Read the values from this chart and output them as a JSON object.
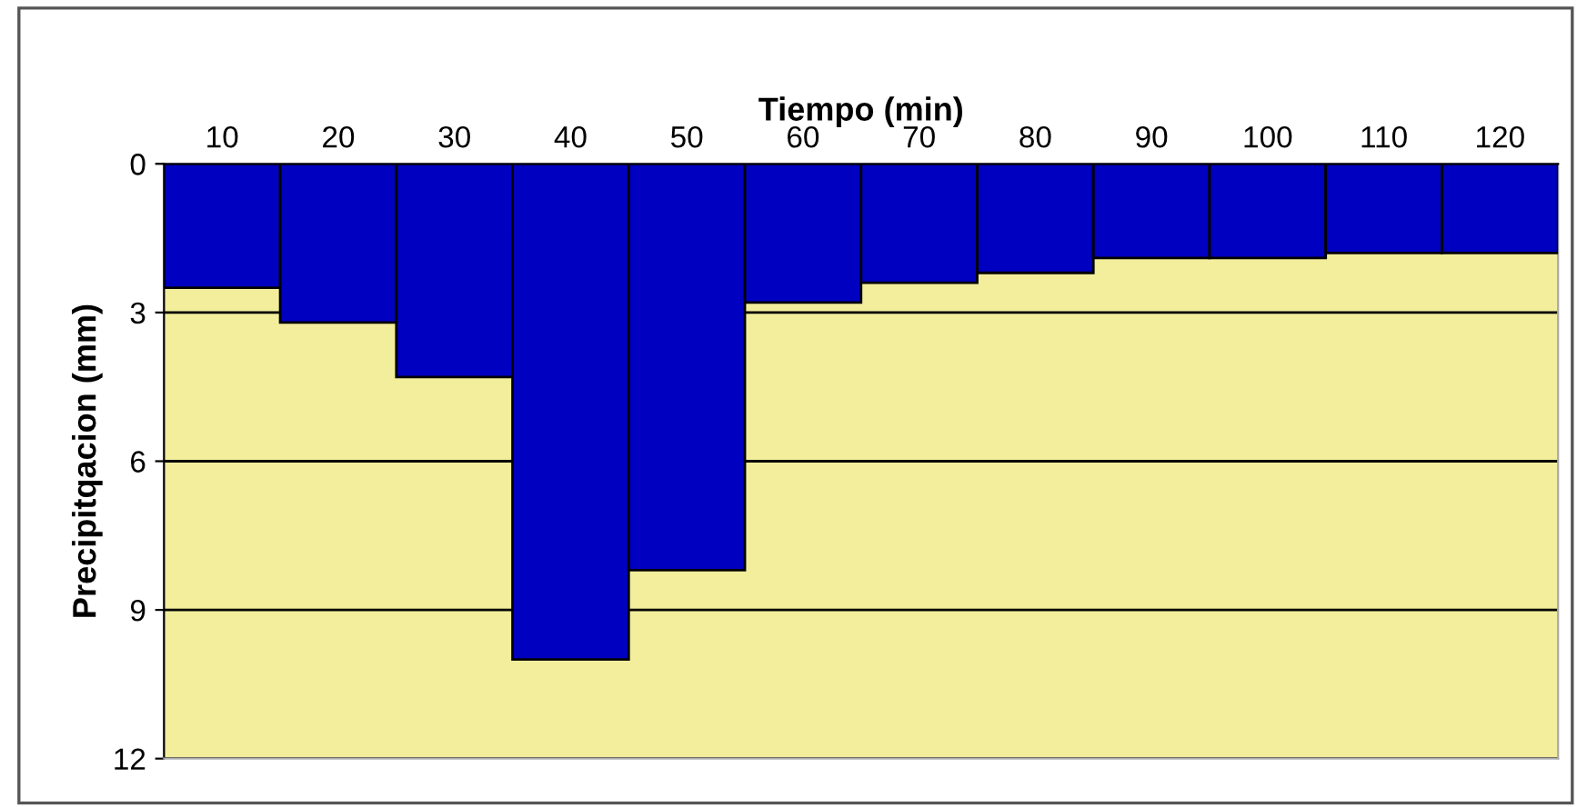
{
  "chart_data": {
    "type": "bar",
    "xlabel": "Tiempo (min)",
    "ylabel": "Precipitqacion (mm)",
    "categories": [
      "10",
      "20",
      "30",
      "40",
      "50",
      "60",
      "70",
      "80",
      "90",
      "100",
      "110",
      "120"
    ],
    "values": [
      2.5,
      3.2,
      4.3,
      10.0,
      8.2,
      2.8,
      2.4,
      2.2,
      1.9,
      1.9,
      1.8,
      1.8
    ],
    "color": "#0000c0",
    "ylim": [
      12,
      0
    ],
    "yticks": [
      0,
      3,
      6,
      9,
      12
    ],
    "grid": "y"
  }
}
